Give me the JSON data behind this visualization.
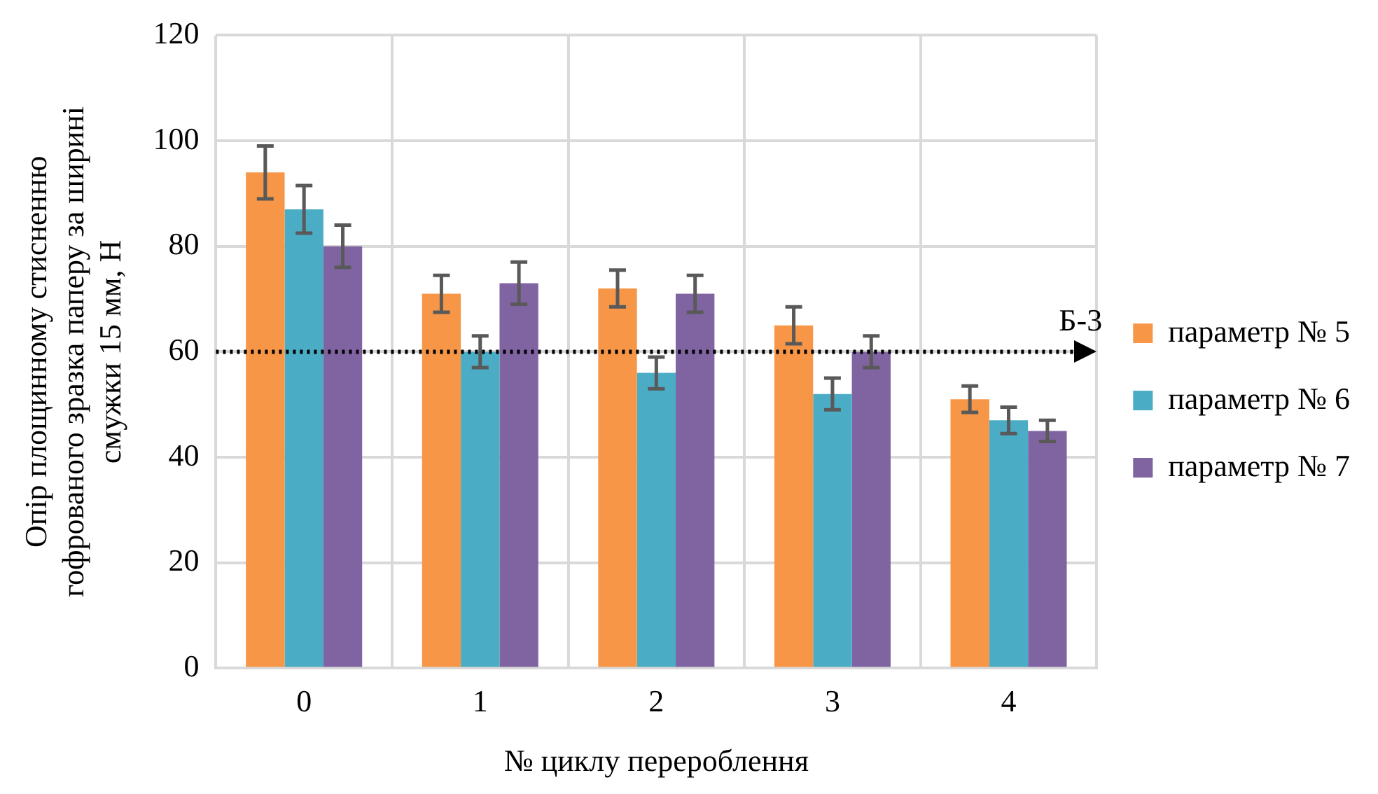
{
  "chart_data": {
    "type": "bar",
    "xlabel": "№ циклу перероблення",
    "ylabel": "Опір площинному стисненню гофрованого зразка паперу за ширині смужки 15 мм, Н",
    "categories": [
      "0",
      "1",
      "2",
      "3",
      "4"
    ],
    "series": [
      {
        "name": "параметр № 5",
        "color": "#f79646",
        "values": [
          94,
          71,
          72,
          65,
          51
        ],
        "errors": [
          5,
          3.5,
          3.5,
          3.5,
          2.5
        ]
      },
      {
        "name": "параметр № 6",
        "color": "#4bacc6",
        "values": [
          87,
          60,
          56,
          52,
          47
        ],
        "errors": [
          4.5,
          3,
          3,
          3,
          2.5
        ]
      },
      {
        "name": "параметр № 7",
        "color": "#8064a2",
        "values": [
          80,
          73,
          71,
          60,
          45
        ],
        "errors": [
          4,
          4,
          3.5,
          3,
          2
        ]
      }
    ],
    "ylim": [
      0,
      120
    ],
    "yticks": [
      0,
      20,
      40,
      60,
      80,
      100,
      120
    ],
    "grid": true,
    "legend": "right",
    "ref_lines": [
      {
        "axis": "y",
        "value": 60,
        "label": "Б-3",
        "color": "#000000",
        "line_style": "dotted"
      }
    ]
  }
}
